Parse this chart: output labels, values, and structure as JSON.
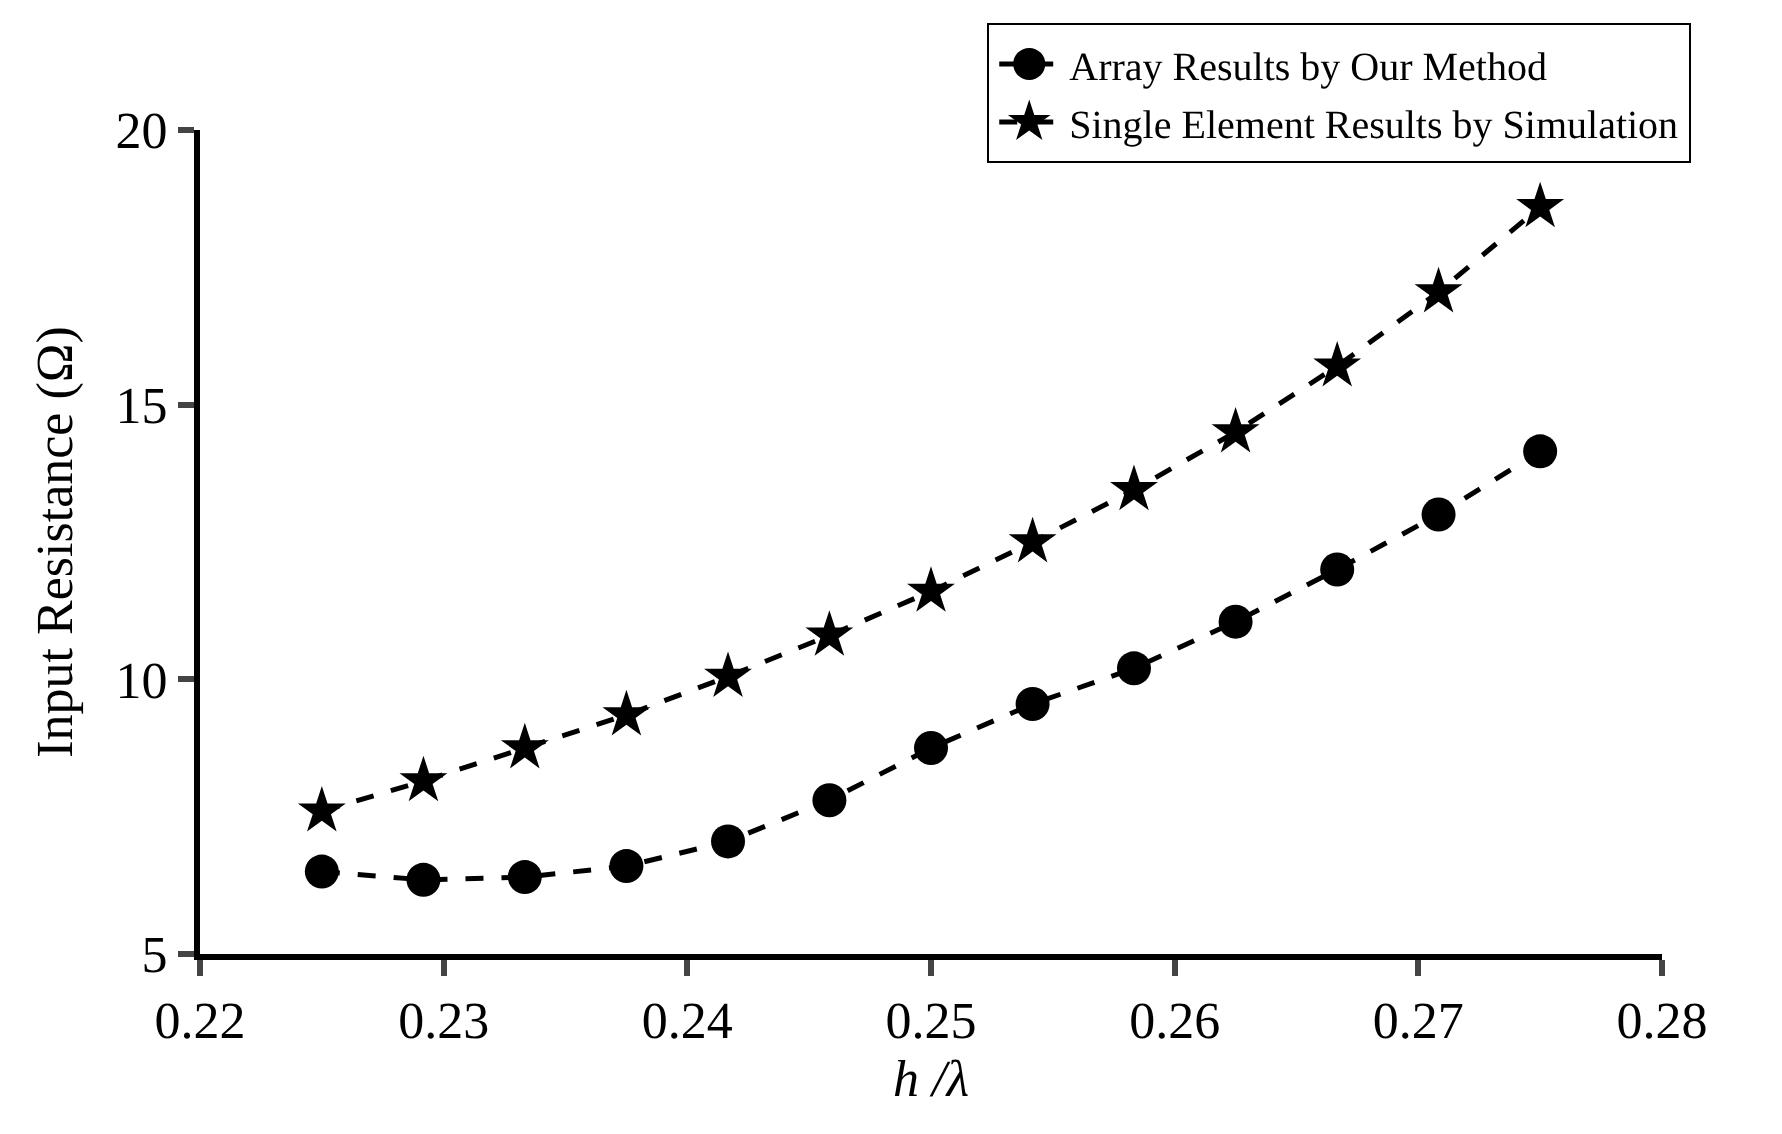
{
  "chart_data": {
    "type": "line",
    "xlabel": "h /λ",
    "ylabel": "Input Resistance (Ω)",
    "x": [
      0.225,
      0.22917,
      0.23333,
      0.2375,
      0.24167,
      0.24583,
      0.25,
      0.25417,
      0.25833,
      0.2625,
      0.26667,
      0.27083,
      0.275
    ],
    "series": [
      {
        "name": "Array Results by Our Method",
        "color": "#000000",
        "marker": "circle",
        "values": [
          6.5,
          6.35,
          6.4,
          6.6,
          7.05,
          7.8,
          8.75,
          9.55,
          10.2,
          11.05,
          12.0,
          13.0,
          14.15
        ]
      },
      {
        "name": "Single Element Results by Simulation",
        "color": "#000000",
        "marker": "star",
        "values": [
          7.6,
          8.15,
          8.75,
          9.35,
          10.05,
          10.8,
          11.6,
          12.5,
          13.45,
          14.5,
          15.7,
          17.05,
          18.6
        ]
      }
    ],
    "xlim": [
      0.22,
      0.28
    ],
    "xticks": [
      0.22,
      0.23,
      0.24,
      0.25,
      0.26,
      0.27,
      0.28
    ],
    "ylim": [
      5,
      20
    ],
    "yticks": [
      5,
      10,
      15,
      20
    ],
    "grid": false,
    "legend": "top right",
    "line_style": "dashed"
  }
}
